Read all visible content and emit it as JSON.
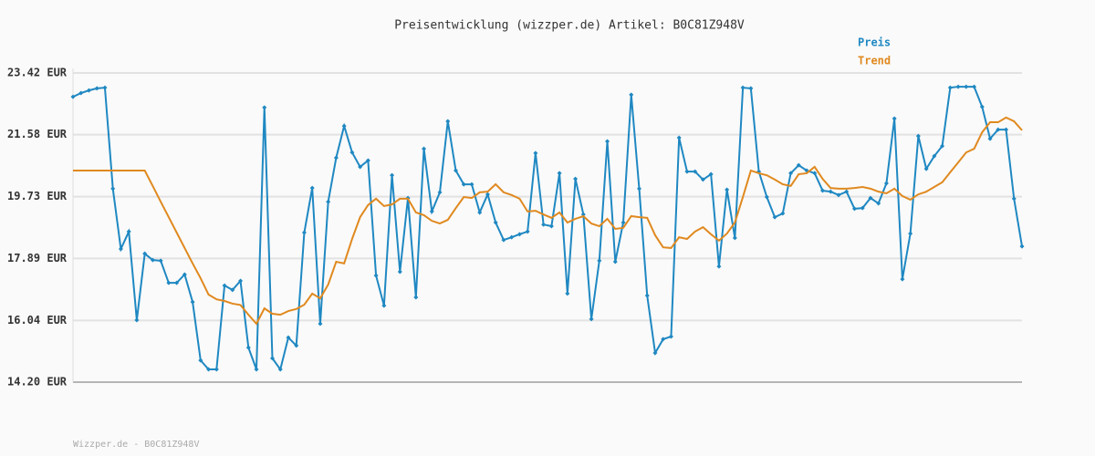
{
  "chart_data": {
    "type": "line",
    "title": "Preisentwicklung (wizzper.de) Artikel: B0C81Z948V",
    "footer": "Wizzper.de - B0C81Z948V",
    "ylim": [
      14.2,
      23.42
    ],
    "yticks": [
      {
        "value": 14.2,
        "label": "14.20 EUR"
      },
      {
        "value": 16.04,
        "label": "16.04 EUR"
      },
      {
        "value": 17.89,
        "label": "17.89 EUR"
      },
      {
        "value": 19.73,
        "label": "19.73 EUR"
      },
      {
        "value": 21.58,
        "label": "21.58 EUR"
      },
      {
        "value": 23.42,
        "label": "23.42 EUR"
      }
    ],
    "grid": true,
    "legend": "top-right",
    "series": [
      {
        "name": "Preis",
        "color": "#1f88c2",
        "markers": true,
        "values": [
          22.71,
          22.82,
          22.9,
          22.96,
          22.98,
          19.97,
          18.17,
          18.69,
          16.05,
          18.03,
          17.84,
          17.82,
          17.16,
          17.16,
          17.41,
          16.59,
          14.85,
          14.58,
          14.58,
          17.08,
          16.95,
          17.22,
          15.23,
          14.58,
          22.39,
          14.91,
          14.58,
          15.53,
          15.29,
          18.66,
          19.99,
          15.94,
          19.58,
          20.89,
          21.84,
          21.05,
          20.62,
          20.81,
          17.38,
          16.48,
          20.37,
          17.49,
          19.69,
          16.73,
          21.16,
          19.29,
          19.86,
          21.98,
          20.51,
          20.1,
          20.1,
          19.26,
          19.8,
          18.96,
          18.44,
          18.52,
          18.61,
          18.69,
          21.03,
          18.9,
          18.85,
          20.43,
          16.84,
          20.26,
          19.2,
          16.08,
          17.82,
          21.38,
          17.79,
          18.96,
          22.77,
          19.97,
          16.78,
          15.07,
          15.48,
          15.56,
          21.49,
          20.48,
          20.48,
          20.24,
          20.4,
          17.65,
          19.94,
          18.5,
          22.98,
          22.96,
          20.48,
          19.72,
          19.12,
          19.23,
          20.43,
          20.67,
          20.51,
          20.43,
          19.91,
          19.88,
          19.78,
          19.88,
          19.37,
          19.39,
          19.69,
          19.53,
          20.13,
          22.06,
          17.27,
          18.63,
          21.54,
          20.56,
          20.94,
          21.24,
          22.98,
          23.01,
          23.01,
          23.01,
          22.41,
          21.46,
          21.73,
          21.73,
          19.67,
          18.25
        ]
      },
      {
        "name": "Trend",
        "color": "#e0891f",
        "markers": false,
        "values": [
          20.51,
          20.51,
          20.51,
          20.51,
          20.51,
          20.51,
          20.51,
          20.51,
          20.51,
          20.51,
          20.05,
          19.58,
          19.12,
          18.66,
          18.2,
          17.74,
          17.3,
          16.81,
          16.67,
          16.62,
          16.54,
          16.5,
          16.21,
          15.94,
          16.4,
          16.24,
          16.21,
          16.32,
          16.38,
          16.51,
          16.84,
          16.7,
          17.11,
          17.79,
          17.74,
          18.47,
          19.12,
          19.48,
          19.67,
          19.45,
          19.5,
          19.67,
          19.67,
          19.26,
          19.18,
          19.01,
          18.93,
          19.04,
          19.39,
          19.72,
          19.69,
          19.86,
          19.88,
          20.1,
          19.86,
          19.78,
          19.67,
          19.29,
          19.31,
          19.2,
          19.1,
          19.26,
          18.96,
          19.07,
          19.15,
          18.93,
          18.85,
          19.07,
          18.77,
          18.8,
          19.15,
          19.12,
          19.1,
          18.58,
          18.22,
          18.2,
          18.52,
          18.47,
          18.69,
          18.82,
          18.61,
          18.42,
          18.63,
          18.96,
          19.72,
          20.51,
          20.43,
          20.37,
          20.24,
          20.1,
          20.05,
          20.4,
          20.43,
          20.62,
          20.26,
          19.99,
          19.97,
          19.97,
          19.99,
          20.02,
          19.97,
          19.88,
          19.83,
          19.97,
          19.75,
          19.64,
          19.8,
          19.88,
          20.02,
          20.16,
          20.46,
          20.75,
          21.05,
          21.16,
          21.65,
          21.95,
          21.95,
          22.09,
          21.98,
          21.71
        ]
      }
    ]
  }
}
